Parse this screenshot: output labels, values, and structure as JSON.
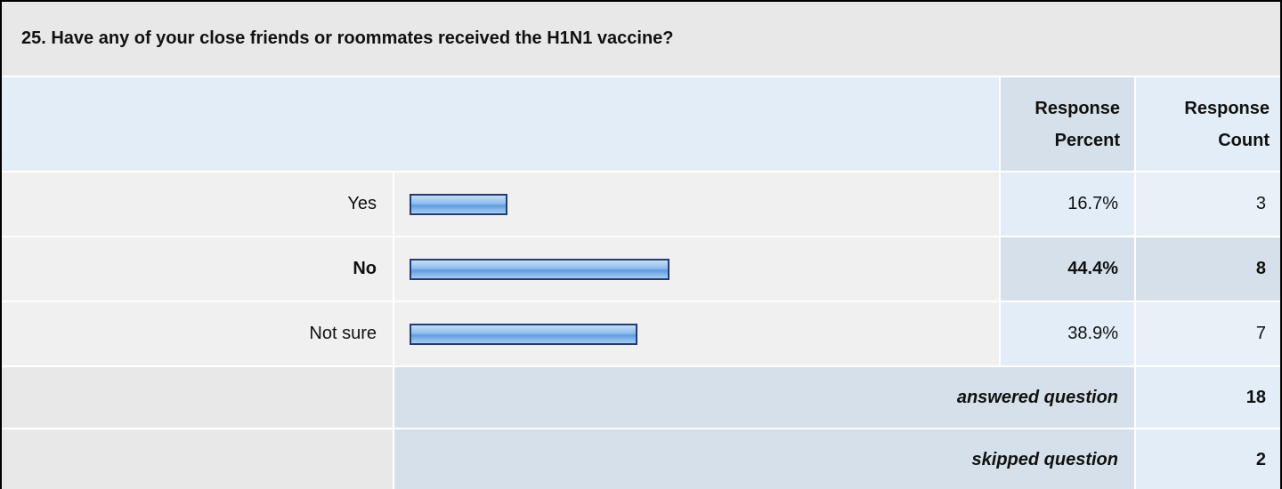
{
  "question": "25. Have any of your close friends or roommates received the H1N1 vaccine?",
  "table": {
    "headers": {
      "percent": "Response Percent",
      "count": "Response Count"
    },
    "rows": [
      {
        "label": "Yes",
        "percent": {
          "value": 16.7,
          "label": "16.7%"
        },
        "count": 3
      },
      {
        "label": "No",
        "percent": {
          "value": 44.4,
          "label": "44.4%"
        },
        "count": 8
      },
      {
        "label": "Not sure",
        "percent": {
          "value": 38.9,
          "label": "38.9%"
        },
        "count": 7
      }
    ],
    "footer": [
      {
        "label": "answered question",
        "count": 18
      },
      {
        "label": "skipped question",
        "count": 2
      }
    ]
  }
}
